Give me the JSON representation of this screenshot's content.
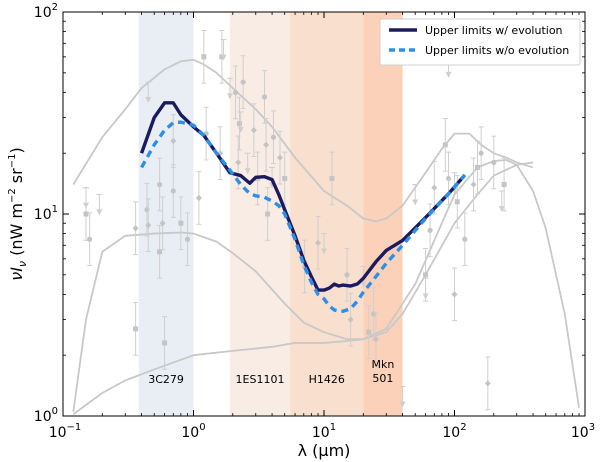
{
  "chart_data": {
    "type": "line",
    "title": "",
    "xlabel_prefix": "λ (",
    "xlabel_unit": "μm",
    "xlabel_suffix": ")",
    "ylabel_base": "νI",
    "ylabel_sub": "ν",
    "ylabel_units": "(nW  m",
    "ylabel_exp1": "−2",
    "ylabel_mid": " sr",
    "ylabel_exp2": "−1",
    "ylabel_close": ")",
    "xscale": "log",
    "yscale": "log",
    "xlim": [
      0.1,
      1000
    ],
    "ylim": [
      1,
      100
    ],
    "x_ticks": [
      {
        "value": 0.1,
        "base": "10",
        "exp": "−1"
      },
      {
        "value": 1,
        "base": "10",
        "exp": "0"
      },
      {
        "value": 10,
        "base": "10",
        "exp": "1"
      },
      {
        "value": 100,
        "base": "10",
        "exp": "2"
      },
      {
        "value": 1000,
        "base": "10",
        "exp": "3"
      }
    ],
    "y_ticks": [
      {
        "value": 1,
        "base": "10",
        "exp": "0"
      },
      {
        "value": 10,
        "base": "10",
        "exp": "1"
      },
      {
        "value": 100,
        "base": "10",
        "exp": "2"
      }
    ],
    "legend": {
      "position": "top-right",
      "entries": [
        {
          "label": "Upper limits w/ evolution",
          "color": "#1a1a5e",
          "style": "solid"
        },
        {
          "label": "Upper limits w/o evolution",
          "color": "#2e8fe8",
          "style": "dashed"
        }
      ]
    },
    "bands": [
      {
        "name": "3C279",
        "label_lines": [
          "3C279"
        ],
        "x_range": [
          0.38,
          1.0
        ],
        "color": "#e8eef4"
      },
      {
        "name": "1ES1101",
        "label_lines": [
          "1ES1101"
        ],
        "x_range": [
          1.9,
          5.5
        ],
        "color": "#f9ece5"
      },
      {
        "name": "H1426",
        "label_lines": [
          "H1426"
        ],
        "x_range": [
          5.5,
          20
        ],
        "color": "#f9dfcd"
      },
      {
        "name": "Mkn501",
        "label_lines": [
          "Mkn",
          "501"
        ],
        "x_range": [
          20,
          40
        ],
        "color": "#fbd2b9"
      }
    ],
    "series": [
      {
        "name": "Upper limits w/ evolution",
        "color": "#1a1a5e",
        "style": "solid",
        "x": [
          0.4,
          0.5,
          0.6,
          0.7,
          0.8,
          1.0,
          1.2,
          1.5,
          1.9,
          2.3,
          2.7,
          3.0,
          3.5,
          4.0,
          4.5,
          5.0,
          6.0,
          7.0,
          8.0,
          9.0,
          10.0,
          11.0,
          12.0,
          13.0,
          14.0,
          16.0,
          18.0,
          20.0,
          25.0,
          30.0,
          40.0,
          60.0,
          90.0,
          120.0
        ],
        "y": [
          20,
          30,
          35.5,
          35.5,
          31,
          27,
          24.5,
          20,
          16,
          15.5,
          14.2,
          15.2,
          15.3,
          14.8,
          12.5,
          10.5,
          7.8,
          5.9,
          4.9,
          4.2,
          4.2,
          4.3,
          4.5,
          4.4,
          4.45,
          4.4,
          4.5,
          4.8,
          5.8,
          6.6,
          7.4,
          9.6,
          12.6,
          15.6
        ]
      },
      {
        "name": "Upper limits w/o evolution",
        "color": "#2e8fe8",
        "style": "dashed",
        "x": [
          0.4,
          0.5,
          0.6,
          0.7,
          0.8,
          1.0,
          1.2,
          1.5,
          1.9,
          2.3,
          2.7,
          3.0,
          3.5,
          4.0,
          4.5,
          5.0,
          6.0,
          7.0,
          8.0,
          9.0,
          10.0,
          11.0,
          12.0,
          13.0,
          14.0,
          16.0,
          18.0,
          20.0,
          25.0,
          30.0,
          40.0,
          60.0,
          90.0,
          120.0
        ],
        "y": [
          17,
          22,
          26,
          28.3,
          28.5,
          27.5,
          24.5,
          20,
          16.5,
          14,
          12.6,
          12.3,
          12.1,
          11.6,
          11,
          10,
          7.5,
          5.6,
          4.6,
          4.0,
          3.8,
          3.5,
          3.35,
          3.3,
          3.3,
          3.4,
          3.7,
          4.1,
          4.9,
          5.7,
          7.0,
          9.5,
          12.6,
          15.6
        ]
      },
      {
        "name": "EBL model upper",
        "color": "#c8c8c8",
        "style": "solid",
        "x": [
          0.12,
          0.2,
          0.3,
          0.4,
          0.6,
          0.8,
          1.0,
          1.2,
          1.5,
          2.0,
          3.0,
          4.0,
          6.0,
          10.0,
          15.0,
          20.0,
          25.0,
          30.0,
          40.0,
          60.0,
          80.0,
          100.0,
          130.0,
          160.0,
          200.0,
          250.0,
          300.0,
          400.0
        ],
        "y": [
          14,
          24,
          33,
          42,
          52,
          57,
          58,
          55,
          50,
          42,
          33,
          27,
          19,
          13,
          11,
          9.5,
          9.2,
          9.5,
          11,
          16,
          21,
          25,
          25,
          22,
          20,
          19,
          18,
          17
        ]
      },
      {
        "name": "EBL model middle",
        "color": "#c8c8c8",
        "style": "solid",
        "x": [
          0.12,
          0.15,
          0.2,
          0.3,
          0.5,
          0.8,
          1.0,
          1.5,
          2.0,
          3.0,
          5.0,
          7.0,
          10.0,
          15.0,
          20.0,
          30.0,
          50.0,
          80.0,
          100.0,
          150.0,
          200.0,
          250.0,
          300.0,
          400.0,
          500.0,
          700.0,
          900.0
        ],
        "y": [
          1.05,
          3.0,
          6.5,
          7.8,
          8.0,
          8.1,
          8.0,
          7.3,
          6.4,
          5.2,
          3.6,
          2.9,
          2.6,
          2.4,
          2.4,
          2.7,
          4.5,
          9.0,
          12.5,
          17,
          18.3,
          18.5,
          17.5,
          13,
          8.5,
          3.2,
          1.1
        ]
      },
      {
        "name": "EBL model lower",
        "color": "#c8c8c8",
        "style": "solid",
        "x": [
          0.12,
          0.2,
          0.3,
          0.5,
          1.0,
          2.0,
          4.0,
          6.0,
          10.0,
          15.0,
          20.0,
          30.0,
          40.0,
          60.0,
          100.0,
          150.0,
          200.0,
          300.0,
          400.0
        ],
        "y": [
          1.02,
          1.3,
          1.5,
          1.7,
          2.0,
          2.1,
          2.2,
          2.3,
          2.3,
          2.35,
          2.4,
          2.6,
          3.2,
          5.0,
          9.0,
          12.5,
          15.5,
          17.5,
          18
        ]
      }
    ],
    "measurements": [
      {
        "x": 0.15,
        "y": 10
      },
      {
        "x": 0.16,
        "y": 7.5
      },
      {
        "x": 0.36,
        "y": 8.5
      },
      {
        "x": 0.36,
        "y": 2.7
      },
      {
        "x": 0.44,
        "y": 10.5
      },
      {
        "x": 0.45,
        "y": 8.8
      },
      {
        "x": 0.55,
        "y": 6.5
      },
      {
        "x": 0.55,
        "y": 14
      },
      {
        "x": 0.58,
        "y": 9
      },
      {
        "x": 0.6,
        "y": 2.3
      },
      {
        "x": 0.7,
        "y": 13
      },
      {
        "x": 0.7,
        "y": 23
      },
      {
        "x": 0.8,
        "y": 9
      },
      {
        "x": 0.9,
        "y": 7.5
      },
      {
        "x": 1.1,
        "y": 12
      },
      {
        "x": 1.2,
        "y": 60
      },
      {
        "x": 1.25,
        "y": 25
      },
      {
        "x": 1.6,
        "y": 20
      },
      {
        "x": 1.65,
        "y": 60
      },
      {
        "x": 2.1,
        "y": 40
      },
      {
        "x": 2.2,
        "y": 18
      },
      {
        "x": 2.25,
        "y": 28
      },
      {
        "x": 2.4,
        "y": 45
      },
      {
        "x": 2.9,
        "y": 26
      },
      {
        "x": 3.1,
        "y": 15
      },
      {
        "x": 3.5,
        "y": 38
      },
      {
        "x": 3.6,
        "y": 22
      },
      {
        "x": 3.7,
        "y": 10
      },
      {
        "x": 4.1,
        "y": 24
      },
      {
        "x": 4.6,
        "y": 19
      },
      {
        "x": 5.0,
        "y": 15
      },
      {
        "x": 7.1,
        "y": 5.5
      },
      {
        "x": 9.0,
        "y": 7.2
      },
      {
        "x": 11.5,
        "y": 15
      },
      {
        "x": 15,
        "y": 5.0
      },
      {
        "x": 16,
        "y": 3.0
      },
      {
        "x": 22,
        "y": 2.6
      },
      {
        "x": 24,
        "y": 3.2
      },
      {
        "x": 25,
        "y": 2.4
      },
      {
        "x": 60,
        "y": 5.0
      },
      {
        "x": 65,
        "y": 8.3
      },
      {
        "x": 70,
        "y": 13.5
      },
      {
        "x": 85,
        "y": 22
      },
      {
        "x": 90,
        "y": 15
      },
      {
        "x": 100,
        "y": 4.0
      },
      {
        "x": 105,
        "y": 11.5
      },
      {
        "x": 120,
        "y": 7.5
      },
      {
        "x": 140,
        "y": 14
      },
      {
        "x": 150,
        "y": 17
      },
      {
        "x": 160,
        "y": 20
      },
      {
        "x": 180,
        "y": 1.45
      },
      {
        "x": 240,
        "y": 14
      },
      {
        "x": 200,
        "y": 18
      }
    ],
    "upper_limit_arrows": [
      {
        "x": 0.15,
        "y": 13.5
      },
      {
        "x": 0.19,
        "y": 12.5
      },
      {
        "x": 0.45,
        "y": 45
      },
      {
        "x": 1.7,
        "y": 73
      },
      {
        "x": 1.9,
        "y": 47
      },
      {
        "x": 2.3,
        "y": 32
      },
      {
        "x": 2.6,
        "y": 20
      },
      {
        "x": 4.0,
        "y": 17
      },
      {
        "x": 10,
        "y": 8
      },
      {
        "x": 20,
        "y": 5.5
      },
      {
        "x": 40,
        "y": 1.4
      },
      {
        "x": 50,
        "y": 14
      },
      {
        "x": 60,
        "y": 4.8
      },
      {
        "x": 90,
        "y": 60
      },
      {
        "x": 100,
        "y": 16
      },
      {
        "x": 230,
        "y": 13
      }
    ]
  }
}
